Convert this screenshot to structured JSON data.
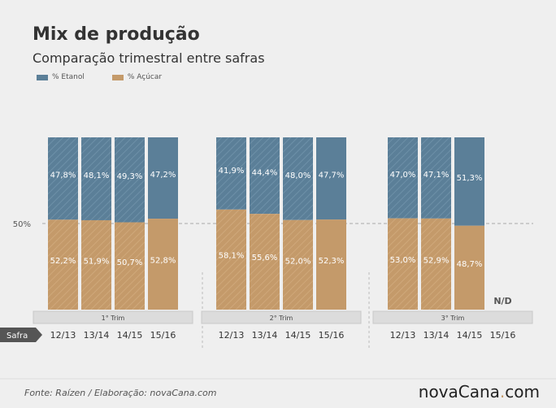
{
  "title": "Mix de produção",
  "subtitle": "Comparação trimestral entre safras",
  "colors": {
    "etanol": "#5b7f98",
    "acucar": "#c49a6a",
    "background": "#efefef"
  },
  "chart_data": {
    "type": "bar",
    "stacked": true,
    "reference_line": {
      "value": 50,
      "label": "50%"
    },
    "legend": [
      "% Etanol",
      "% Açúcar"
    ],
    "safra_label": "Safra",
    "groups": [
      {
        "name": "1° Trim",
        "categories": [
          "12/13",
          "13/14",
          "14/15",
          "15/16"
        ],
        "series": [
          {
            "name": "% Etanol",
            "values": [
              47.8,
              48.1,
              49.3,
              47.2
            ],
            "labels": [
              "47,8%",
              "48,1%",
              "49,3%",
              "47,2%"
            ]
          },
          {
            "name": "% Açúcar",
            "values": [
              52.2,
              51.9,
              50.7,
              52.8
            ],
            "labels": [
              "52,2%",
              "51,9%",
              "50,7%",
              "52,8%"
            ]
          }
        ]
      },
      {
        "name": "2° Trim",
        "categories": [
          "12/13",
          "13/14",
          "14/15",
          "15/16"
        ],
        "series": [
          {
            "name": "% Etanol",
            "values": [
              41.9,
              44.4,
              48.0,
              47.7
            ],
            "labels": [
              "41,9%",
              "44,4%",
              "48,0%",
              "47,7%"
            ]
          },
          {
            "name": "% Açúcar",
            "values": [
              58.1,
              55.6,
              52.0,
              52.3
            ],
            "labels": [
              "58,1%",
              "55,6%",
              "52,0%",
              "52,3%"
            ]
          }
        ]
      },
      {
        "name": "3° Trim",
        "categories": [
          "12/13",
          "13/14",
          "14/15",
          "15/16"
        ],
        "series": [
          {
            "name": "% Etanol",
            "values": [
              47.0,
              47.1,
              51.3,
              null
            ],
            "labels": [
              "47,0%",
              "47,1%",
              "51,3%",
              ""
            ]
          },
          {
            "name": "% Açúcar",
            "values": [
              53.0,
              52.9,
              48.7,
              null
            ],
            "labels": [
              "53,0%",
              "52,9%",
              "48,7%",
              ""
            ]
          }
        ],
        "missing_label": "N/D"
      }
    ]
  },
  "footer": {
    "source": "Fonte:  Raízen / Elaboração:  novaCana.com",
    "brand_main": "novaCana",
    "brand_tld": ".com"
  }
}
